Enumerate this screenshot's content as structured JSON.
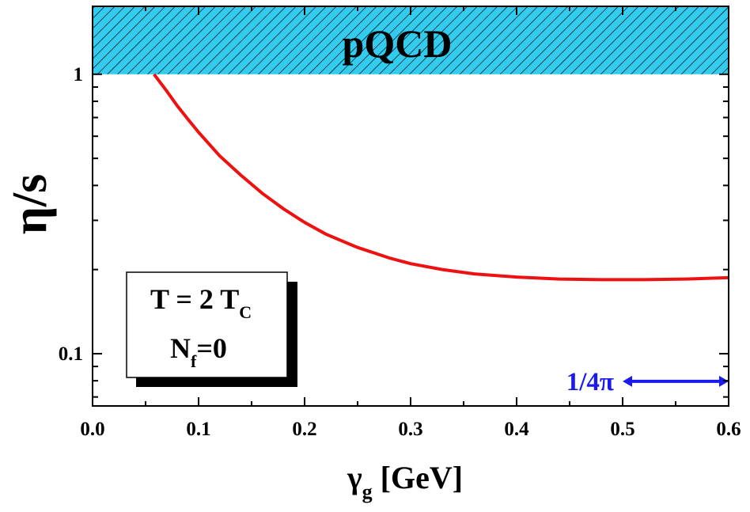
{
  "chart_data": {
    "type": "line",
    "title": "",
    "xlabel": {
      "main": "γ",
      "sub": "g",
      "unit": "[GeV]"
    },
    "ylabel": "η/s",
    "xlim": [
      0.0,
      0.6
    ],
    "ylim": [
      0.065,
      1.75
    ],
    "yscale": "log",
    "x_ticks": [
      {
        "value": 0.0,
        "label": "0.0"
      },
      {
        "value": 0.1,
        "label": "0.1"
      },
      {
        "value": 0.2,
        "label": "0.2"
      },
      {
        "value": 0.3,
        "label": "0.3"
      },
      {
        "value": 0.4,
        "label": "0.4"
      },
      {
        "value": 0.5,
        "label": "0.5"
      },
      {
        "value": 0.6,
        "label": "0.6"
      }
    ],
    "y_ticks": [
      {
        "value": 0.1,
        "label": "0.1"
      },
      {
        "value": 1,
        "label": "1"
      }
    ],
    "grid": false,
    "series": [
      {
        "color": "#ee1111",
        "x": [
          0.058,
          0.07,
          0.08,
          0.09,
          0.1,
          0.12,
          0.14,
          0.16,
          0.18,
          0.2,
          0.22,
          0.25,
          0.28,
          0.3,
          0.33,
          0.36,
          0.4,
          0.44,
          0.48,
          0.52,
          0.56,
          0.6
        ],
        "y": [
          1.0,
          0.87,
          0.77,
          0.69,
          0.62,
          0.51,
          0.435,
          0.375,
          0.33,
          0.295,
          0.268,
          0.24,
          0.22,
          0.21,
          0.2,
          0.193,
          0.188,
          0.185,
          0.184,
          0.184,
          0.185,
          0.187
        ]
      }
    ],
    "region": {
      "label": "pQCD",
      "y_from": 1.0,
      "color": "#33ccee"
    },
    "arrow": {
      "label": "1/4π",
      "x_from": 0.5,
      "x_to": 0.6,
      "y": 0.0796,
      "color": "#1a1aee"
    },
    "legend_box": {
      "line1": {
        "main": "T = 2 T",
        "sub": "C"
      },
      "line2": {
        "main": "N",
        "sub": "f",
        "rest": "=0"
      }
    }
  }
}
